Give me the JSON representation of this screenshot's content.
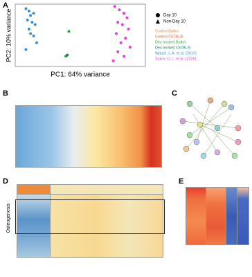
{
  "panels": {
    "a": "A",
    "b": "B",
    "c": "C",
    "d": "D",
    "e": "E",
    "d_row_label": "Osteogenesis"
  },
  "chart_data": {
    "type": "scatter",
    "xlabel": "PC1: 64% variance",
    "ylabel": "PC2: 10% variance",
    "shape_legend": [
      "Day 10",
      "Non-Day 10"
    ],
    "xlim": [
      -45,
      40
    ],
    "ylim": [
      -25,
      30
    ],
    "series": [
      {
        "name": "Control Balb/c",
        "color": "#f08a30",
        "x": [],
        "y": []
      },
      {
        "name": "Control C57BL/6",
        "color": "#e0603a",
        "x": [],
        "y": []
      },
      {
        "name": "Dex treated Balb/c",
        "color": "#2eaa3c",
        "x": [
          -12,
          -10
        ],
        "y": [
          -16,
          6
        ]
      },
      {
        "name": "Dex treated C57BL/6",
        "color": "#1e7a6a",
        "x": [
          -11
        ],
        "y": [
          -15
        ]
      },
      {
        "name": "Waizel, L.A. et al. (2019)",
        "color": "#3a8fd8",
        "x": [
          -38,
          -36,
          -35,
          -33,
          -37,
          -34,
          -32,
          -36,
          -35,
          -33,
          -31,
          -38
        ],
        "y": [
          26,
          24,
          20,
          22,
          16,
          14,
          12,
          8,
          4,
          2,
          -4,
          -10
        ]
      },
      {
        "name": "Salvo, O. L. et al. (2020)",
        "color": "#e040d8",
        "x": [
          20,
          23,
          26,
          28,
          22,
          25,
          29,
          21,
          27,
          24,
          30,
          22,
          26,
          19
        ],
        "y": [
          28,
          25,
          22,
          18,
          14,
          12,
          8,
          4,
          0,
          -4,
          -8,
          -12,
          -16,
          -20
        ]
      }
    ]
  }
}
